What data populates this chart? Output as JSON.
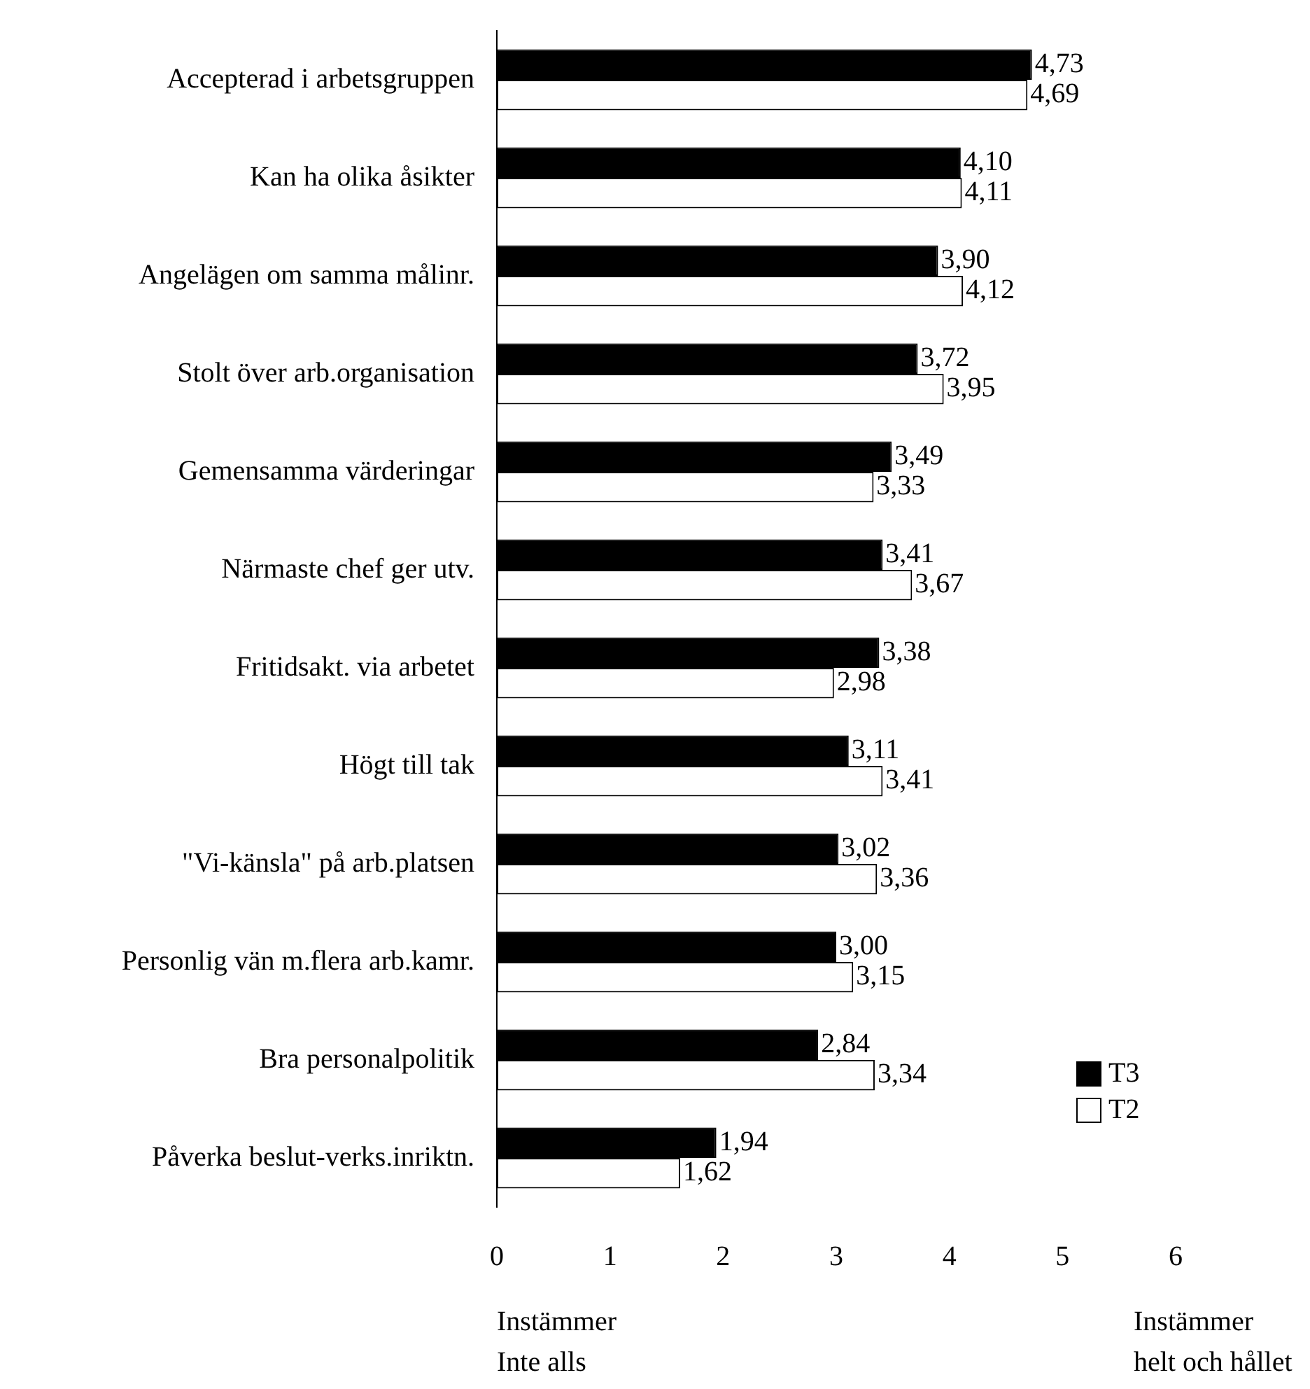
{
  "chart_data": {
    "type": "bar",
    "orientation": "horizontal",
    "categories": [
      "Accepterad i arbetsgruppen",
      "Kan ha olika åsikter",
      "Angelägen om samma målinr.",
      "Stolt över arb.organisation",
      "Gemensamma värderingar",
      "Närmaste chef ger utv.",
      "Fritidsakt. via arbetet",
      "Högt till tak",
      "\"Vi-känsla\" på arb.platsen",
      "Personlig vän m.flera arb.kamr.",
      "Bra personalpolitik",
      "Påverka beslut-verks.inriktn."
    ],
    "series": [
      {
        "name": "T3",
        "color": "#000000",
        "values": [
          4.73,
          4.1,
          3.9,
          3.72,
          3.49,
          3.41,
          3.38,
          3.11,
          3.02,
          3.0,
          2.84,
          1.94
        ],
        "value_labels": [
          "4,73",
          "4,10",
          "3,90",
          "3,72",
          "3,49",
          "3,41",
          "3,38",
          "3,11",
          "3,02",
          "3,00",
          "2,84",
          "1,94"
        ]
      },
      {
        "name": "T2",
        "color": "#ffffff",
        "values": [
          4.69,
          4.11,
          4.12,
          3.95,
          3.33,
          3.67,
          2.98,
          3.41,
          3.36,
          3.15,
          3.34,
          1.62
        ],
        "value_labels": [
          "4,69",
          "4,11",
          "4,12",
          "3,95",
          "3,33",
          "3,67",
          "2,98",
          "3,41",
          "3,36",
          "3,15",
          "3,34",
          "1,62"
        ]
      }
    ],
    "xlim": [
      0,
      6
    ],
    "xticks": [
      0,
      1,
      2,
      3,
      4,
      5,
      6
    ],
    "grid": false,
    "legend": "bottom right",
    "annotations": [
      "Instämmer\nInte alls",
      "Instämmer\nhelt och hållet"
    ]
  }
}
